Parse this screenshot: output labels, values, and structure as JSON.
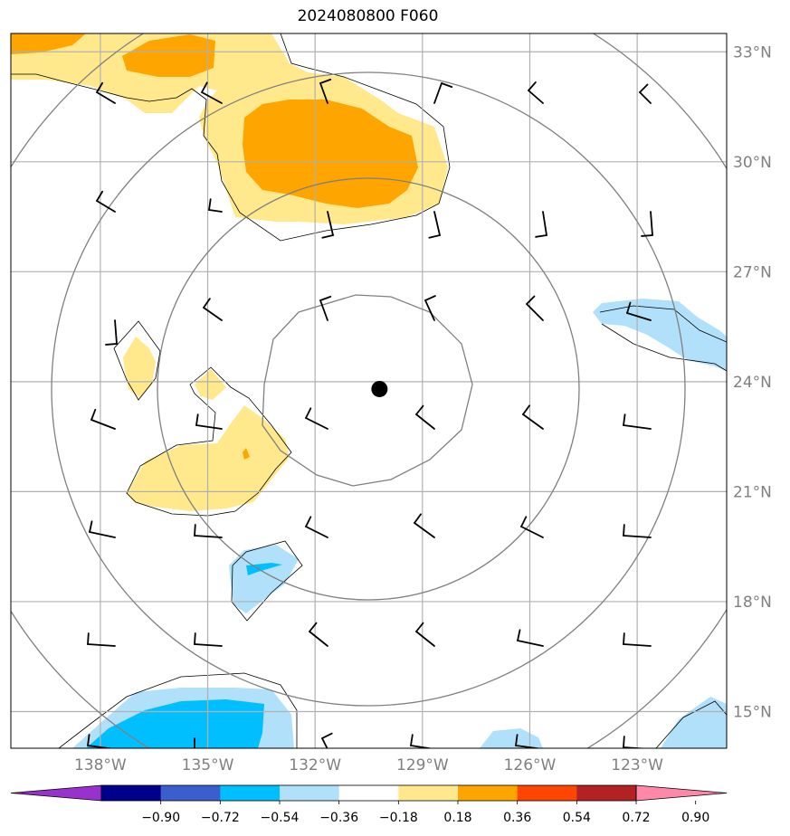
{
  "title": "2024080800 F060",
  "map": {
    "lat_range": [
      14.0,
      33.5
    ],
    "lon_range": [
      -140.5,
      -120.5
    ],
    "lat_labels": [
      "33°N",
      "30°N",
      "27°N",
      "24°N",
      "21°N",
      "18°N",
      "15°N"
    ],
    "lat_values": [
      33,
      30,
      27,
      24,
      21,
      18,
      15
    ],
    "lon_labels": [
      "138°W",
      "135°W",
      "132°W",
      "129°W",
      "126°W",
      "123°W"
    ],
    "lon_values": [
      -138,
      -135,
      -132,
      -129,
      -126,
      -123
    ],
    "gridline_color": "#b0b0b0",
    "range_ring_color": "#808080",
    "center_marker": {
      "lat": 23.8,
      "lon": -130.2,
      "color": "#000000"
    }
  },
  "colorbar": {
    "ticks": [
      "−0.90",
      "−0.72",
      "−0.54",
      "−0.36",
      "−0.18",
      "0.18",
      "0.36",
      "0.54",
      "0.72",
      "0.90"
    ],
    "colors": [
      "#9932cc",
      "#00008b",
      "#3a5fcd",
      "#00bfff",
      "#b0e0fa",
      "#ffffff",
      "#ffe98c",
      "#ffa500",
      "#ff4500",
      "#b22222",
      "#ff87a8"
    ]
  },
  "shading": {
    "positive_light": "#ffe98c",
    "positive_mid": "#ffa500",
    "negative_light": "#b0e0fa",
    "negative_mid": "#00bfff"
  }
}
